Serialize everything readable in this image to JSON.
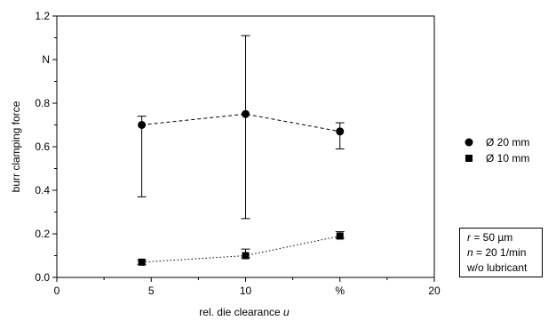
{
  "chart_data": {
    "type": "scatter",
    "title": "",
    "xlabel_prefix": "rel. die clearance ",
    "xlabel_var": "u",
    "ylabel": "burr clamping force",
    "xlim": [
      0,
      20
    ],
    "ylim": [
      0,
      1.2
    ],
    "x_ticks": [
      {
        "value": 0,
        "label": "0"
      },
      {
        "value": 5,
        "label": "5"
      },
      {
        "value": 10,
        "label": "10"
      },
      {
        "value": 15,
        "label": "%"
      },
      {
        "value": 20,
        "label": "20"
      }
    ],
    "y_ticks": [
      {
        "value": 0.0,
        "label": "0.0"
      },
      {
        "value": 0.2,
        "label": "0.2"
      },
      {
        "value": 0.4,
        "label": "0.4"
      },
      {
        "value": 0.6,
        "label": "0.6"
      },
      {
        "value": 0.8,
        "label": "0.8"
      },
      {
        "value": 1.0,
        "label": "N"
      },
      {
        "value": 1.2,
        "label": "1.2"
      }
    ],
    "series": [
      {
        "name": "Ø 20 mm",
        "marker": "circle",
        "line": "dashed",
        "points": [
          {
            "x": 4.5,
            "y": 0.7,
            "err_low": 0.37,
            "err_high": 0.74
          },
          {
            "x": 10,
            "y": 0.75,
            "err_low": 0.27,
            "err_high": 1.11
          },
          {
            "x": 15,
            "y": 0.67,
            "err_low": 0.59,
            "err_high": 0.71
          }
        ]
      },
      {
        "name": "Ø 10 mm",
        "marker": "square",
        "line": "dotted",
        "points": [
          {
            "x": 4.5,
            "y": 0.07,
            "err_low": 0.06,
            "err_high": 0.08
          },
          {
            "x": 10,
            "y": 0.1,
            "err_low": 0.09,
            "err_high": 0.13
          },
          {
            "x": 15,
            "y": 0.19,
            "err_low": 0.18,
            "err_high": 0.21
          }
        ]
      }
    ],
    "legend_position": "right",
    "grid": false
  },
  "conditions": {
    "r_var": "r",
    "r_value": " = 50 µm",
    "n_var": "n",
    "n_value": " = 20 1/min",
    "lubricant": "w/o lubricant"
  }
}
